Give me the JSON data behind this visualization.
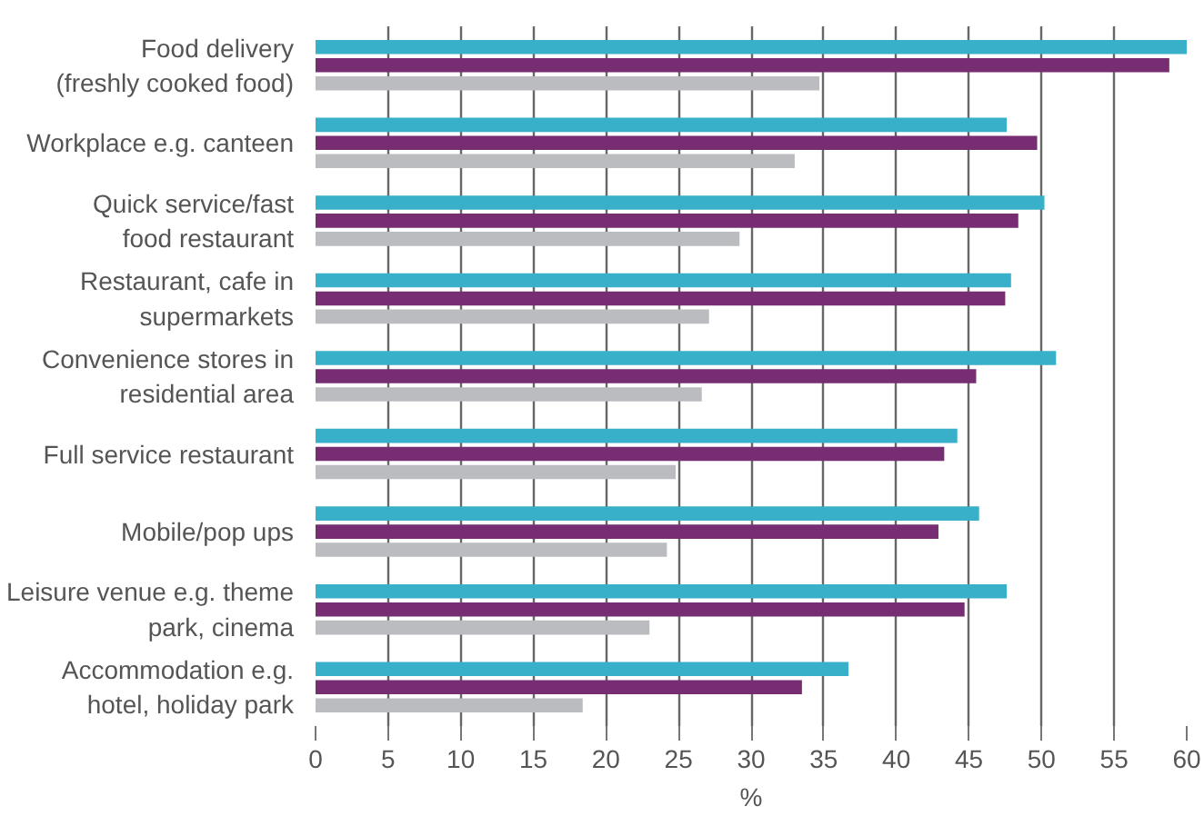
{
  "chart_data": {
    "type": "bar",
    "orientation": "horizontal",
    "xlabel": "%",
    "categories": [
      "Food delivery\n(freshly cooked food)",
      "Workplace e.g. canteen",
      "Quick service/fast\nfood restaurant",
      "Restaurant, cafe in\nsupermarkets",
      "Convenience stores in\nresidential area",
      "Full service restaurant",
      "Mobile/pop ups",
      "Leisure venue e.g. theme\npark, cinema",
      "Accommodation e.g.\nhotel, holiday park"
    ],
    "series": [
      {
        "color": "#38b0c9",
        "values": [
          60,
          47.6,
          50.2,
          47.9,
          51.0,
          44.2,
          45.7,
          47.6,
          36.7
        ]
      },
      {
        "color": "#772d72",
        "values": [
          58.8,
          49.7,
          48.4,
          47.5,
          45.5,
          43.3,
          42.9,
          44.7,
          33.5
        ]
      },
      {
        "color": "#bbbcc0",
        "values": [
          34.7,
          33.0,
          29.2,
          27.1,
          26.6,
          24.8,
          24.2,
          23.0,
          18.4
        ]
      }
    ],
    "xlim": [
      0,
      60
    ],
    "xticks": [
      0,
      5,
      10,
      15,
      20,
      25,
      30,
      35,
      40,
      45,
      50,
      55,
      60
    ],
    "grid": "x"
  }
}
